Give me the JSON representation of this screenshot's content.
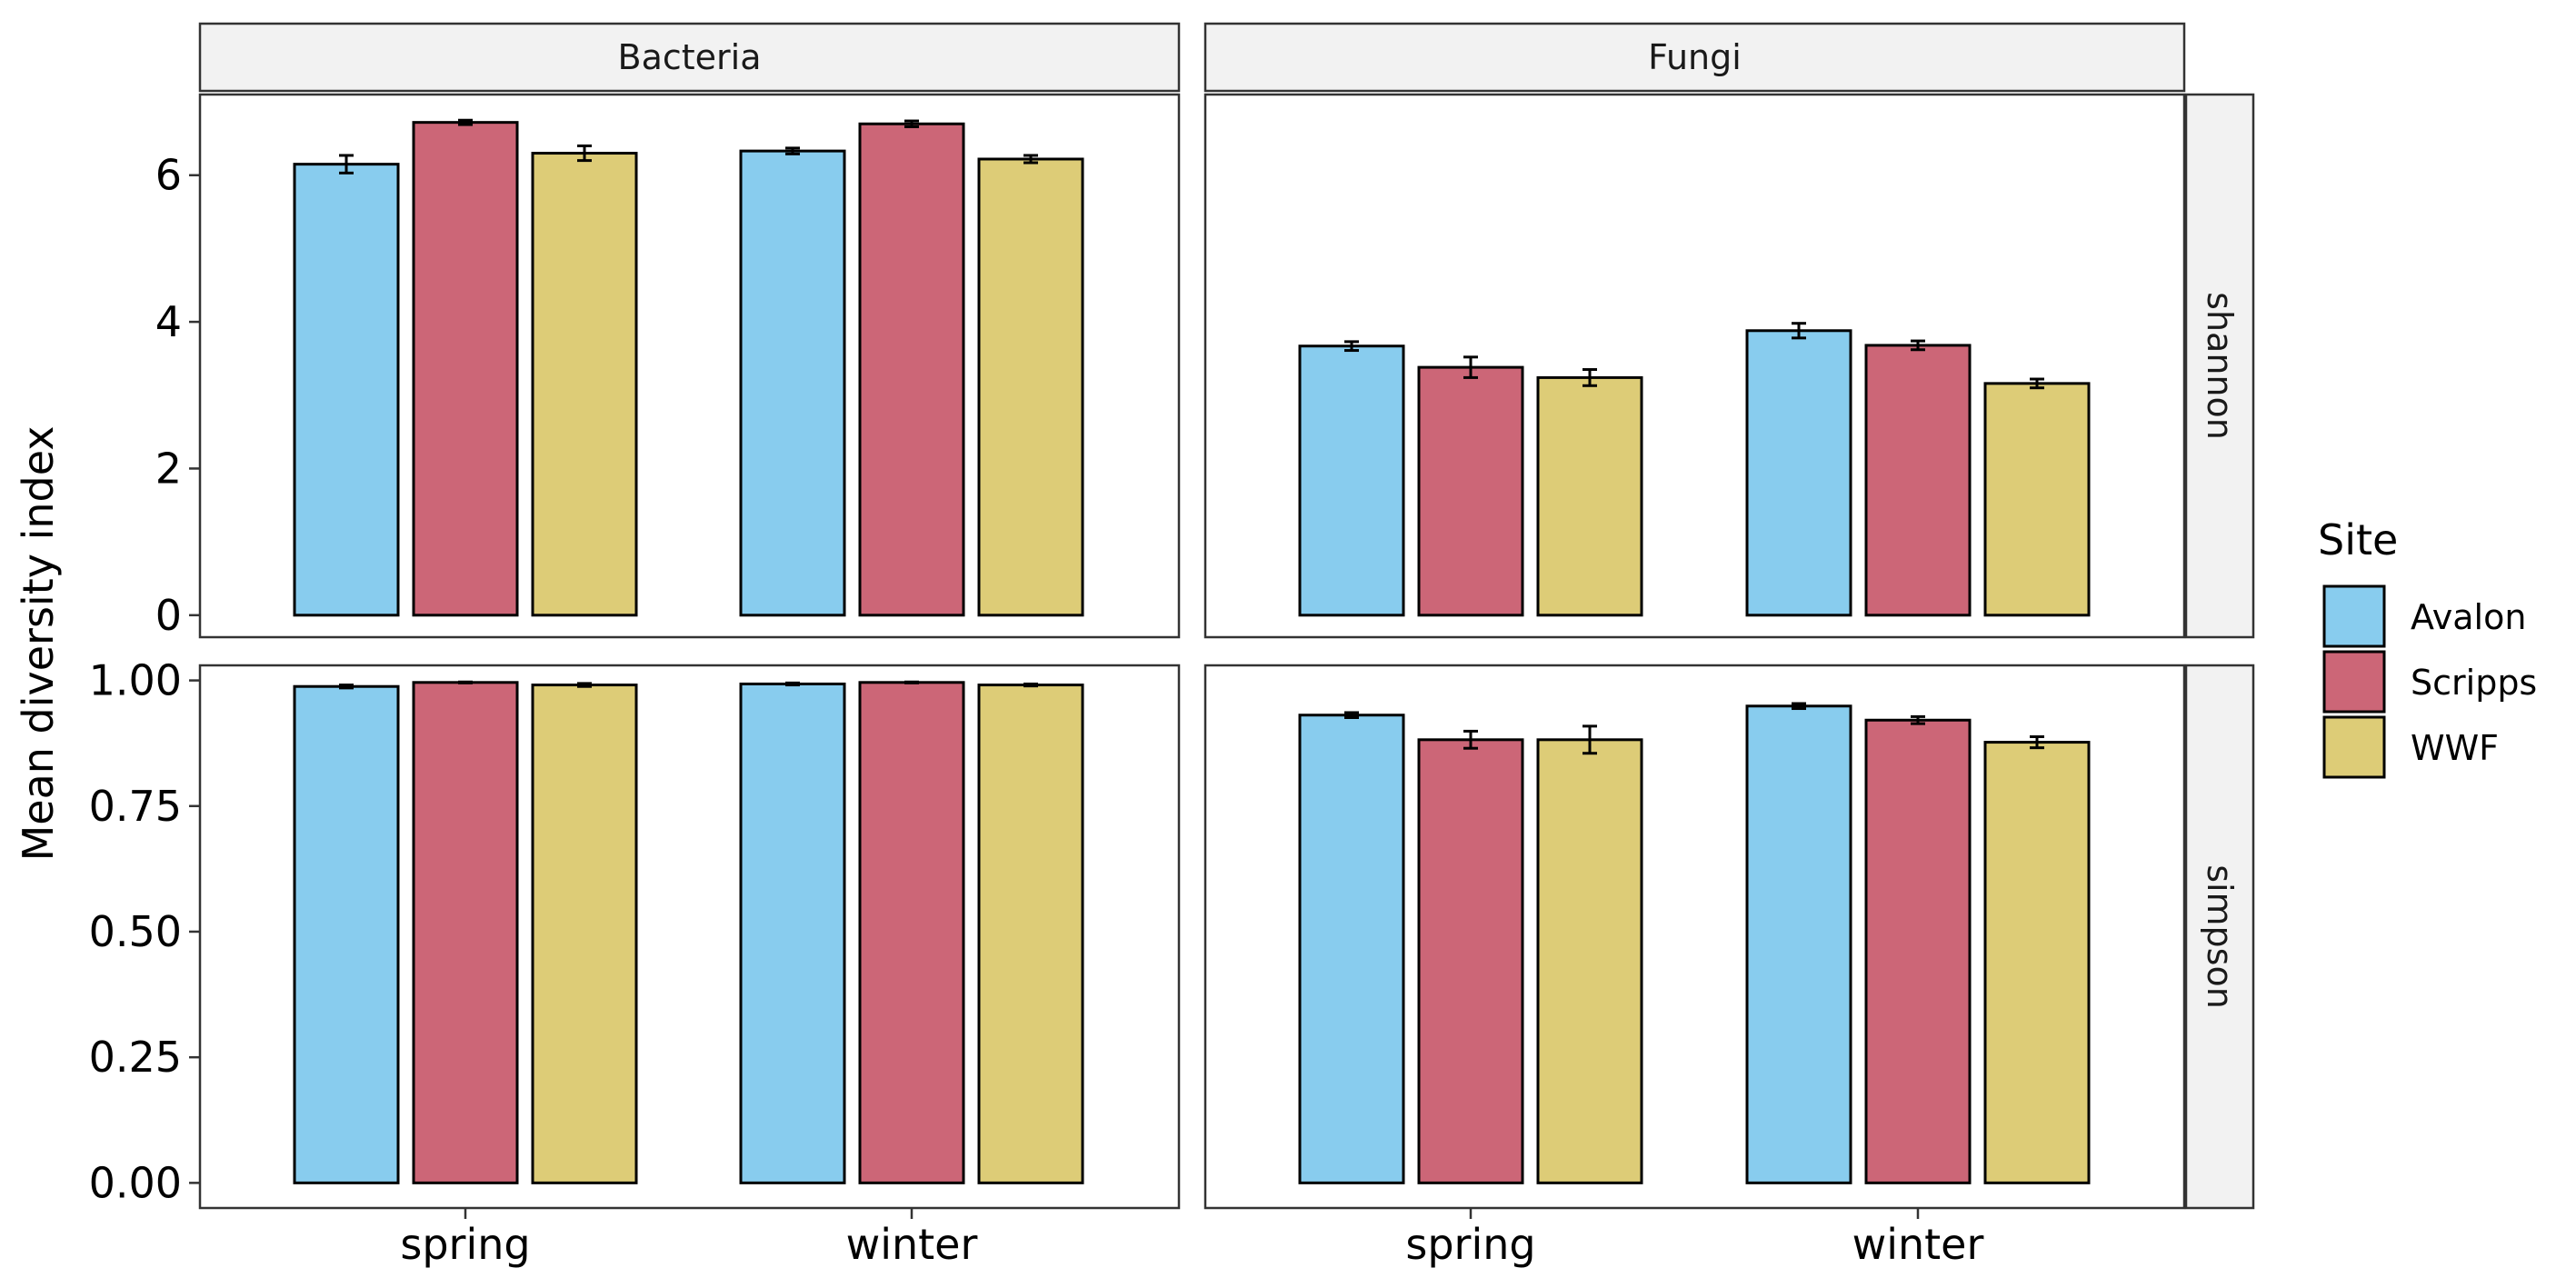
{
  "chart_data": {
    "type": "bar",
    "ylabel": "Mean diversity index",
    "facet_columns": [
      "Bacteria",
      "Fungi"
    ],
    "facet_rows": [
      "shannon",
      "simpson"
    ],
    "categories": [
      "spring",
      "winter"
    ],
    "legend": {
      "title": "Site",
      "position": "right",
      "entries": [
        {
          "name": "Avalon",
          "color": "#88ccee"
        },
        {
          "name": "Scripps",
          "color": "#cc6677"
        },
        {
          "name": "WWF",
          "color": "#ddcc77"
        }
      ]
    },
    "y_scales": {
      "shannon": {
        "ylim": [
          -0.3,
          7.1
        ],
        "ticks": [
          "0",
          "2",
          "4",
          "6"
        ],
        "tick_values": [
          0,
          2,
          4,
          6
        ]
      },
      "simpson": {
        "ylim": [
          -0.05,
          1.03
        ],
        "ticks": [
          "0.00",
          "0.25",
          "0.50",
          "0.75",
          "1.00"
        ],
        "tick_values": [
          0,
          0.25,
          0.5,
          0.75,
          1.0
        ]
      }
    },
    "panels": [
      {
        "row": "shannon",
        "col": "Bacteria",
        "series": [
          {
            "name": "Avalon",
            "values": [
              6.15,
              6.33
            ],
            "errors": [
              0.12,
              0.04
            ]
          },
          {
            "name": "Scripps",
            "values": [
              6.72,
              6.7
            ],
            "errors": [
              0.03,
              0.04
            ]
          },
          {
            "name": "WWF",
            "values": [
              6.3,
              6.22
            ],
            "errors": [
              0.1,
              0.05
            ]
          }
        ]
      },
      {
        "row": "shannon",
        "col": "Fungi",
        "series": [
          {
            "name": "Avalon",
            "values": [
              3.67,
              3.88
            ],
            "errors": [
              0.06,
              0.1
            ]
          },
          {
            "name": "Scripps",
            "values": [
              3.38,
              3.68
            ],
            "errors": [
              0.14,
              0.06
            ]
          },
          {
            "name": "WWF",
            "values": [
              3.24,
              3.16
            ],
            "errors": [
              0.11,
              0.06
            ]
          }
        ]
      },
      {
        "row": "simpson",
        "col": "Bacteria",
        "series": [
          {
            "name": "Avalon",
            "values": [
              0.988,
              0.993
            ],
            "errors": [
              0.003,
              0.002
            ]
          },
          {
            "name": "Scripps",
            "values": [
              0.996,
              0.996
            ],
            "errors": [
              0.001,
              0.001
            ]
          },
          {
            "name": "WWF",
            "values": [
              0.991,
              0.991
            ],
            "errors": [
              0.003,
              0.002
            ]
          }
        ]
      },
      {
        "row": "simpson",
        "col": "Fungi",
        "series": [
          {
            "name": "Avalon",
            "values": [
              0.931,
              0.949
            ],
            "errors": [
              0.005,
              0.005
            ]
          },
          {
            "name": "Scripps",
            "values": [
              0.882,
              0.921
            ],
            "errors": [
              0.017,
              0.007
            ]
          },
          {
            "name": "WWF",
            "values": [
              0.882,
              0.877
            ],
            "errors": [
              0.027,
              0.011
            ]
          }
        ]
      }
    ],
    "grid": false
  }
}
